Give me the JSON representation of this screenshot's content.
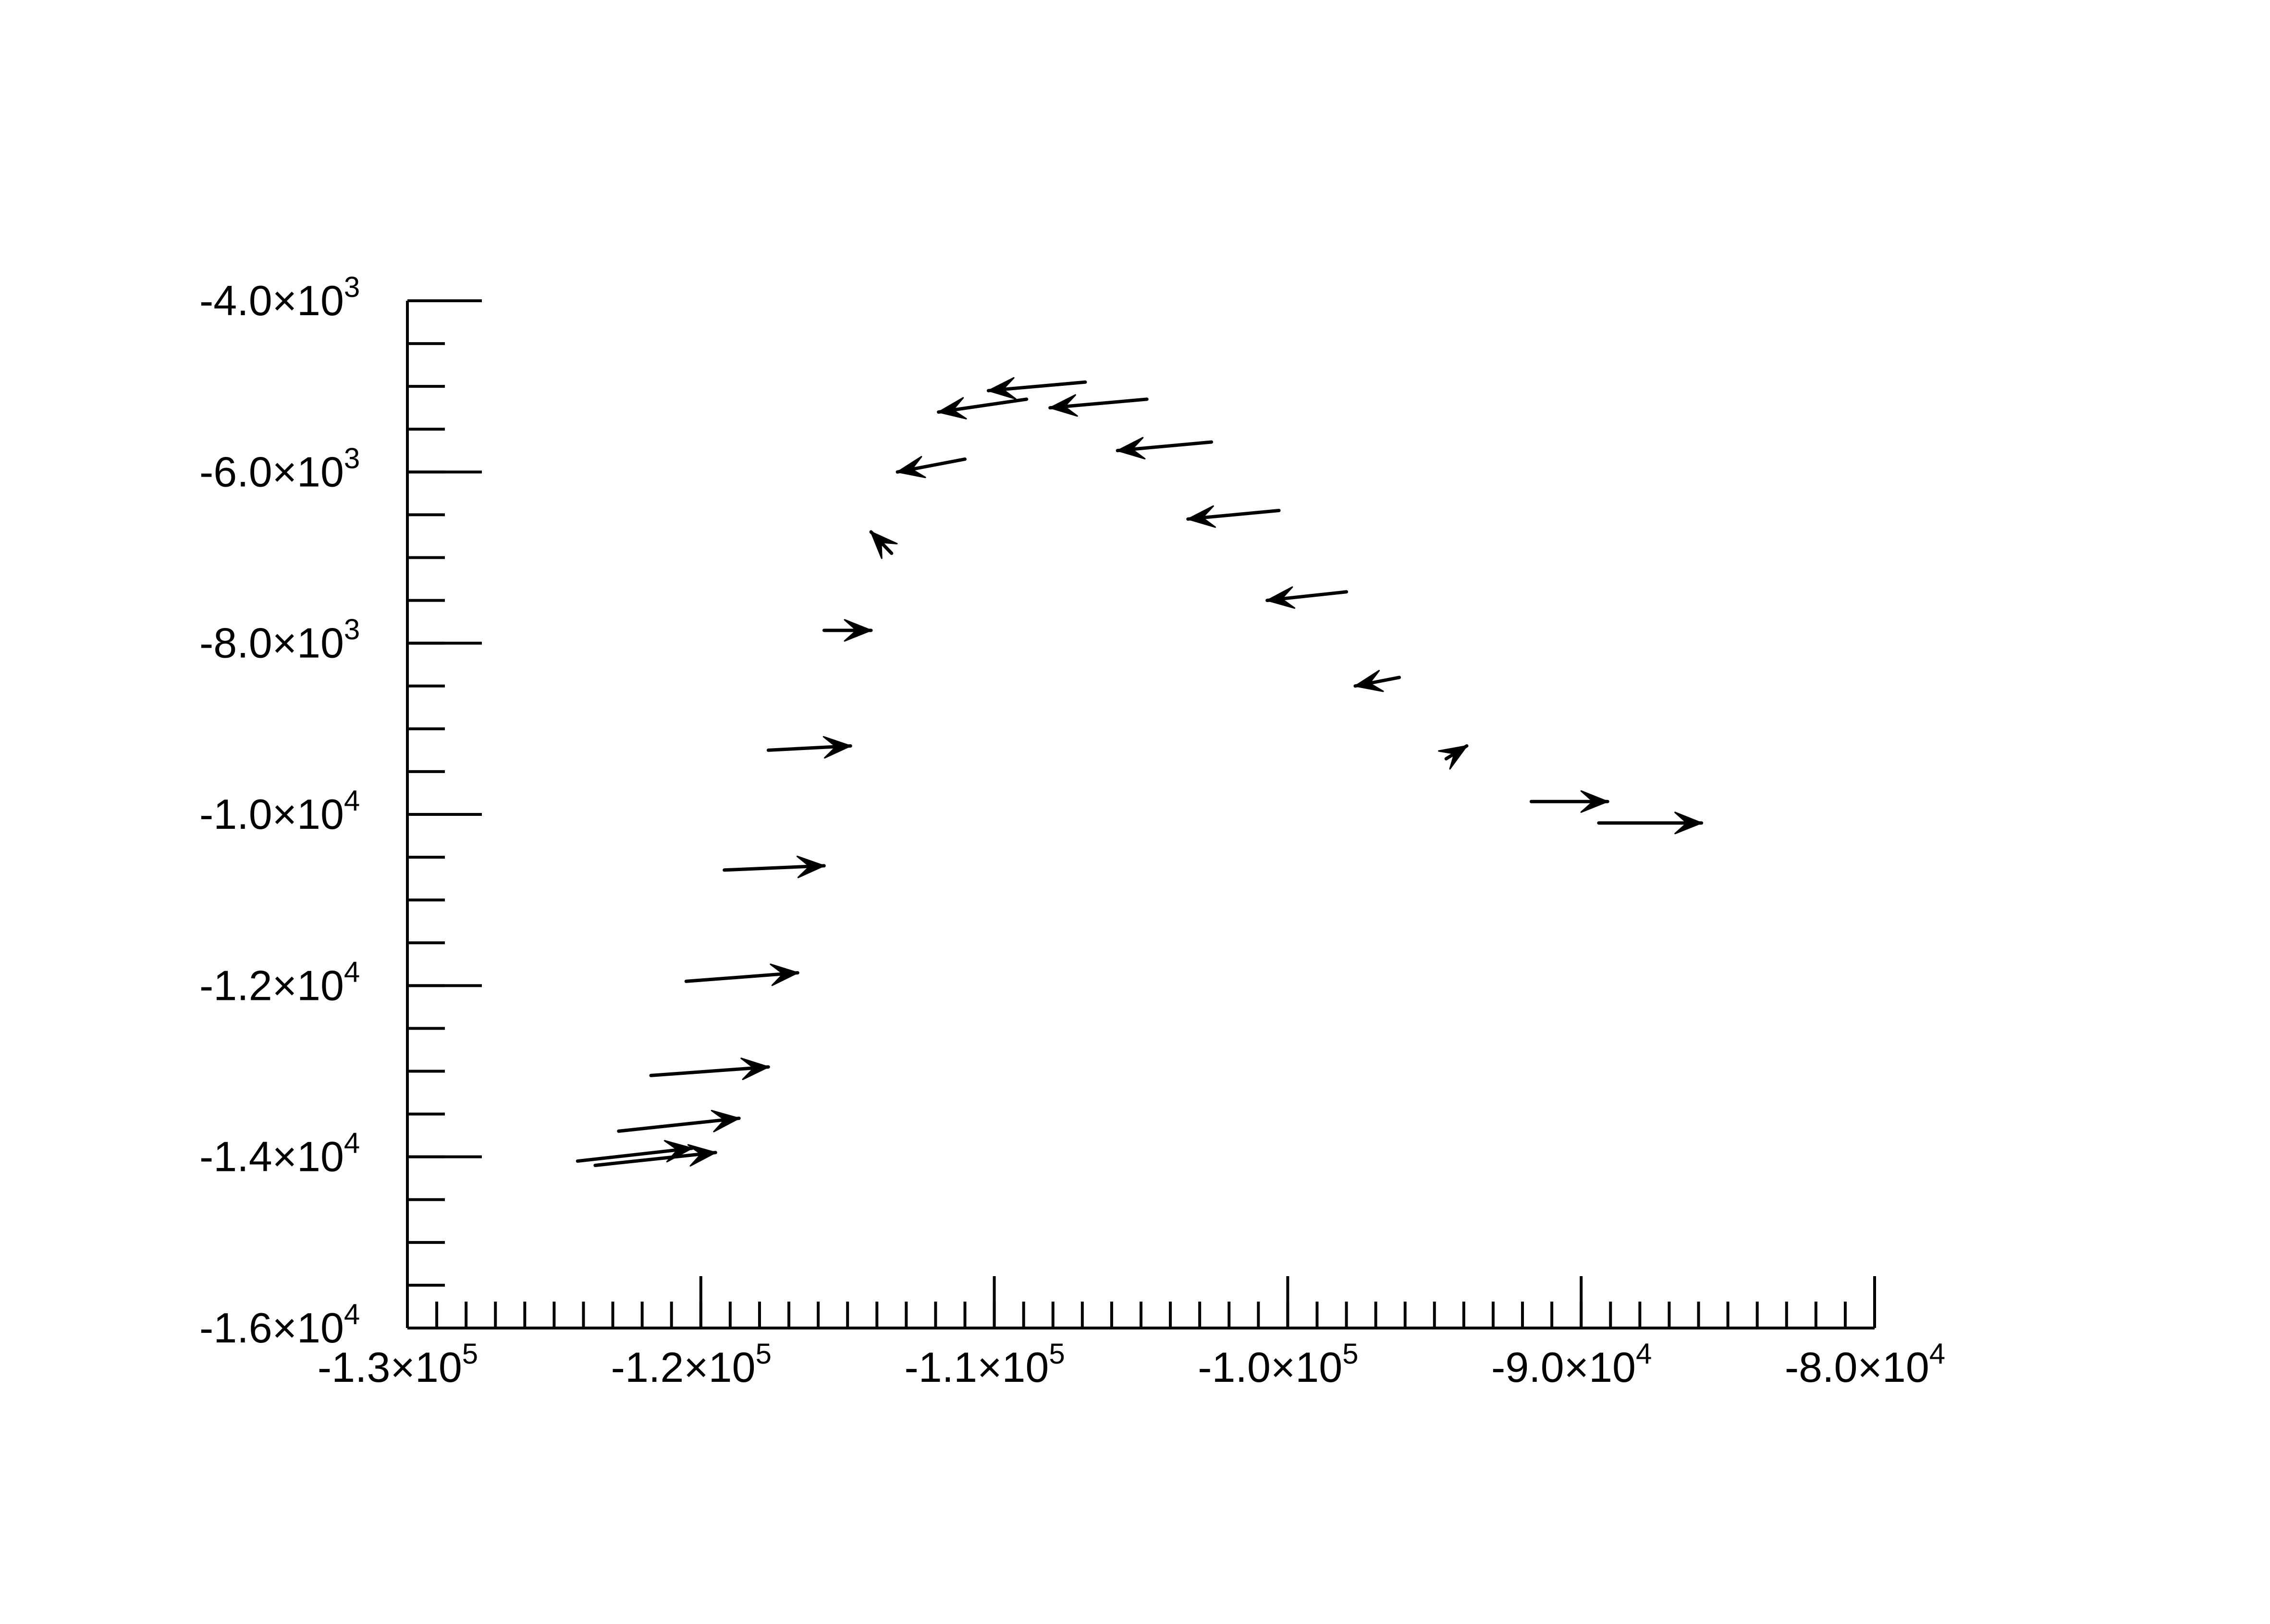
{
  "chart_data": {
    "type": "quiver",
    "title": "",
    "xlabel": "",
    "ylabel": "",
    "xlim": [
      -130000,
      -80000
    ],
    "ylim": [
      -16000,
      -4000
    ],
    "grid": false,
    "legend": "none",
    "x_major_ticks": [
      {
        "value": -130000,
        "mantissa": "-1.3×10",
        "exp": "5"
      },
      {
        "value": -120000,
        "mantissa": "-1.2×10",
        "exp": "5"
      },
      {
        "value": -110000,
        "mantissa": "-1.1×10",
        "exp": "5"
      },
      {
        "value": -100000,
        "mantissa": "-1.0×10",
        "exp": "5"
      },
      {
        "value": -90000,
        "mantissa": "-9.0×10",
        "exp": "4"
      },
      {
        "value": -80000,
        "mantissa": "-8.0×10",
        "exp": "4"
      }
    ],
    "x_minor_step": 1000,
    "y_major_ticks": [
      {
        "value": -4000,
        "mantissa": "-4.0×10",
        "exp": "3"
      },
      {
        "value": -6000,
        "mantissa": "-6.0×10",
        "exp": "3"
      },
      {
        "value": -8000,
        "mantissa": "-8.0×10",
        "exp": "3"
      },
      {
        "value": -10000,
        "mantissa": "-1.0×10",
        "exp": "4"
      },
      {
        "value": -12000,
        "mantissa": "-1.2×10",
        "exp": "4"
      },
      {
        "value": -14000,
        "mantissa": "-1.4×10",
        "exp": "4"
      },
      {
        "value": -16000,
        "mantissa": "-1.6×10",
        "exp": "4"
      }
    ],
    "y_minor_step": 500,
    "arrows": [
      {
        "x": -124200,
        "y": -14050,
        "u": 3900,
        "v": 150
      },
      {
        "x": -123600,
        "y": -14100,
        "u": 4100,
        "v": 150
      },
      {
        "x": -122800,
        "y": -13700,
        "u": 4100,
        "v": 150
      },
      {
        "x": -121700,
        "y": -13050,
        "u": 4000,
        "v": 100
      },
      {
        "x": -120500,
        "y": -11950,
        "u": 3800,
        "v": 100
      },
      {
        "x": -119200,
        "y": -10650,
        "u": 3400,
        "v": 50
      },
      {
        "x": -117700,
        "y": -9250,
        "u": 2800,
        "v": 50
      },
      {
        "x": -115800,
        "y": -7850,
        "u": 1600,
        "v": 0
      },
      {
        "x": -113500,
        "y": -6950,
        "u": -700,
        "v": 250
      },
      {
        "x": -111000,
        "y": -5850,
        "u": -2300,
        "v": -150
      },
      {
        "x": -108900,
        "y": -5150,
        "u": -3000,
        "v": -150
      },
      {
        "x": -106900,
        "y": -4950,
        "u": -3300,
        "v": -100
      },
      {
        "x": -104800,
        "y": -5150,
        "u": -3300,
        "v": -100
      },
      {
        "x": -102600,
        "y": -5650,
        "u": -3200,
        "v": -100
      },
      {
        "x": -100300,
        "y": -6450,
        "u": -3100,
        "v": -100
      },
      {
        "x": -98000,
        "y": -7400,
        "u": -2700,
        "v": -100
      },
      {
        "x": -96200,
        "y": -8400,
        "u": -1500,
        "v": -100
      },
      {
        "x": -94600,
        "y": -9350,
        "u": 700,
        "v": 150
      },
      {
        "x": -91700,
        "y": -9850,
        "u": 2600,
        "v": 0
      },
      {
        "x": -89400,
        "y": -10100,
        "u": 3500,
        "v": 0
      }
    ]
  }
}
